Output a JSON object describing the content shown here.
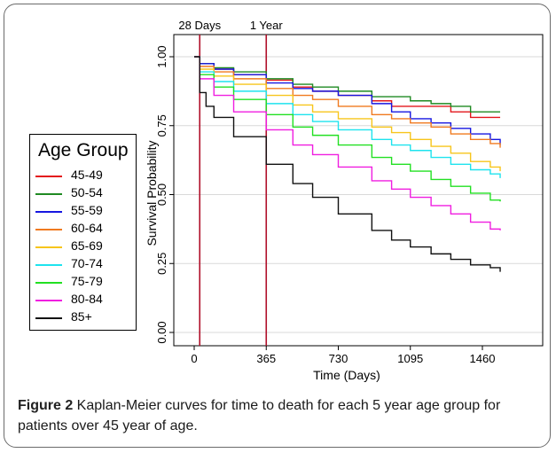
{
  "caption": {
    "figure_label": "Figure 2",
    "text": " Kaplan-Meier curves for time to death for each 5 year age group for patients over 45 year of age."
  },
  "chart_data": {
    "type": "line",
    "title": "",
    "xlabel": "Time (Days)",
    "ylabel": "Survival Probability",
    "xlim": [
      0,
      1600
    ],
    "ylim": [
      0,
      1
    ],
    "x_ticks": [
      0,
      365,
      730,
      1095,
      1460
    ],
    "x_tick_labels": [
      "0",
      "365",
      "730",
      "1095",
      "1460"
    ],
    "y_ticks": [
      0,
      0.25,
      0.5,
      0.75,
      1
    ],
    "y_tick_labels": [
      "0.00",
      "0.25",
      "0.50",
      "0.75",
      "1.00"
    ],
    "grid": "horizontal",
    "legend": {
      "title": "Age Group",
      "placement": "left"
    },
    "reference_lines": [
      {
        "x": 28,
        "label": "28 Days",
        "color": "#b0102a"
      },
      {
        "x": 365,
        "label": "1 Year",
        "color": "#b0102a"
      }
    ],
    "series": [
      {
        "name": "45-49",
        "color": "#e3161b",
        "points": [
          [
            0,
            1
          ],
          [
            28,
            0.975
          ],
          [
            100,
            0.955
          ],
          [
            200,
            0.935
          ],
          [
            365,
            0.915
          ],
          [
            500,
            0.89
          ],
          [
            600,
            0.875
          ],
          [
            730,
            0.86
          ],
          [
            900,
            0.84
          ],
          [
            1000,
            0.82
          ],
          [
            1095,
            0.82
          ],
          [
            1250,
            0.82
          ],
          [
            1300,
            0.8
          ],
          [
            1400,
            0.78
          ],
          [
            1550,
            0.78
          ]
        ]
      },
      {
        "name": "50-54",
        "color": "#1f8a22",
        "points": [
          [
            0,
            1
          ],
          [
            28,
            0.975
          ],
          [
            100,
            0.96
          ],
          [
            200,
            0.945
          ],
          [
            365,
            0.92
          ],
          [
            500,
            0.9
          ],
          [
            600,
            0.89
          ],
          [
            730,
            0.875
          ],
          [
            900,
            0.855
          ],
          [
            1095,
            0.84
          ],
          [
            1200,
            0.83
          ],
          [
            1300,
            0.82
          ],
          [
            1400,
            0.8
          ],
          [
            1550,
            0.8
          ]
        ]
      },
      {
        "name": "55-59",
        "color": "#1616e0",
        "points": [
          [
            0,
            1
          ],
          [
            28,
            0.975
          ],
          [
            100,
            0.955
          ],
          [
            200,
            0.935
          ],
          [
            365,
            0.905
          ],
          [
            500,
            0.885
          ],
          [
            600,
            0.875
          ],
          [
            730,
            0.86
          ],
          [
            900,
            0.83
          ],
          [
            1000,
            0.8
          ],
          [
            1095,
            0.775
          ],
          [
            1200,
            0.76
          ],
          [
            1300,
            0.74
          ],
          [
            1400,
            0.72
          ],
          [
            1500,
            0.7
          ],
          [
            1550,
            0.68
          ]
        ]
      },
      {
        "name": "60-64",
        "color": "#f07a1f",
        "points": [
          [
            0,
            1
          ],
          [
            28,
            0.965
          ],
          [
            100,
            0.945
          ],
          [
            200,
            0.92
          ],
          [
            365,
            0.885
          ],
          [
            500,
            0.86
          ],
          [
            600,
            0.845
          ],
          [
            730,
            0.82
          ],
          [
            900,
            0.79
          ],
          [
            1000,
            0.775
          ],
          [
            1095,
            0.76
          ],
          [
            1200,
            0.745
          ],
          [
            1300,
            0.72
          ],
          [
            1400,
            0.7
          ],
          [
            1500,
            0.685
          ],
          [
            1550,
            0.67
          ]
        ]
      },
      {
        "name": "65-69",
        "color": "#f7c51b",
        "points": [
          [
            0,
            1
          ],
          [
            28,
            0.955
          ],
          [
            100,
            0.93
          ],
          [
            200,
            0.9
          ],
          [
            365,
            0.86
          ],
          [
            500,
            0.825
          ],
          [
            600,
            0.8
          ],
          [
            730,
            0.775
          ],
          [
            900,
            0.745
          ],
          [
            1000,
            0.725
          ],
          [
            1095,
            0.7
          ],
          [
            1200,
            0.675
          ],
          [
            1300,
            0.65
          ],
          [
            1400,
            0.62
          ],
          [
            1500,
            0.6
          ],
          [
            1550,
            0.585
          ]
        ]
      },
      {
        "name": "70-74",
        "color": "#1ee3ee",
        "points": [
          [
            0,
            1
          ],
          [
            28,
            0.945
          ],
          [
            100,
            0.91
          ],
          [
            200,
            0.875
          ],
          [
            365,
            0.83
          ],
          [
            500,
            0.79
          ],
          [
            600,
            0.765
          ],
          [
            730,
            0.735
          ],
          [
            900,
            0.7
          ],
          [
            1000,
            0.68
          ],
          [
            1095,
            0.66
          ],
          [
            1200,
            0.635
          ],
          [
            1300,
            0.61
          ],
          [
            1400,
            0.59
          ],
          [
            1500,
            0.575
          ],
          [
            1550,
            0.56
          ]
        ]
      },
      {
        "name": "75-79",
        "color": "#22e022",
        "points": [
          [
            0,
            1
          ],
          [
            28,
            0.935
          ],
          [
            100,
            0.89
          ],
          [
            200,
            0.845
          ],
          [
            365,
            0.79
          ],
          [
            500,
            0.745
          ],
          [
            600,
            0.715
          ],
          [
            730,
            0.68
          ],
          [
            900,
            0.635
          ],
          [
            1000,
            0.61
          ],
          [
            1095,
            0.585
          ],
          [
            1200,
            0.555
          ],
          [
            1300,
            0.53
          ],
          [
            1400,
            0.505
          ],
          [
            1500,
            0.48
          ],
          [
            1550,
            0.475
          ]
        ]
      },
      {
        "name": "80-84",
        "color": "#f01ee0",
        "points": [
          [
            0,
            1
          ],
          [
            28,
            0.92
          ],
          [
            100,
            0.86
          ],
          [
            200,
            0.8
          ],
          [
            365,
            0.735
          ],
          [
            500,
            0.68
          ],
          [
            600,
            0.645
          ],
          [
            730,
            0.6
          ],
          [
            900,
            0.55
          ],
          [
            1000,
            0.52
          ],
          [
            1095,
            0.49
          ],
          [
            1200,
            0.46
          ],
          [
            1300,
            0.43
          ],
          [
            1400,
            0.4
          ],
          [
            1500,
            0.375
          ],
          [
            1550,
            0.37
          ]
        ]
      },
      {
        "name": "85+",
        "color": "#111111",
        "points": [
          [
            0,
            1
          ],
          [
            28,
            0.87
          ],
          [
            60,
            0.82
          ],
          [
            100,
            0.78
          ],
          [
            200,
            0.71
          ],
          [
            365,
            0.61
          ],
          [
            500,
            0.54
          ],
          [
            600,
            0.49
          ],
          [
            730,
            0.43
          ],
          [
            900,
            0.37
          ],
          [
            1000,
            0.335
          ],
          [
            1095,
            0.31
          ],
          [
            1200,
            0.285
          ],
          [
            1300,
            0.265
          ],
          [
            1400,
            0.245
          ],
          [
            1500,
            0.235
          ],
          [
            1540,
            0.235
          ],
          [
            1550,
            0.22
          ]
        ]
      }
    ]
  }
}
